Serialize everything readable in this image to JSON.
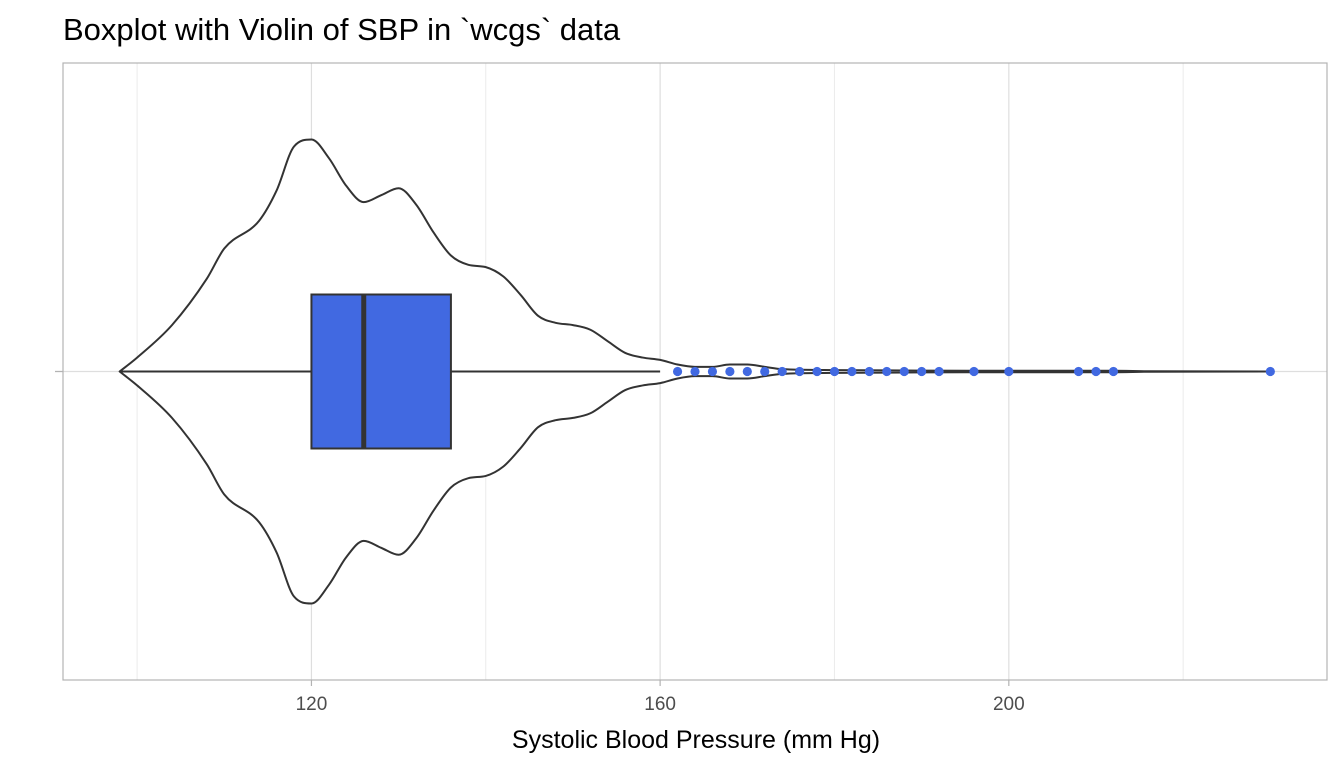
{
  "chart_data": {
    "type": "violin+boxplot",
    "title": "Boxplot with Violin of SBP in `wcgs` data",
    "xlabel": "Systolic Blood Pressure (mm Hg)",
    "ylabel": "",
    "orientation": "horizontal",
    "xlim": [
      91.5,
      236.5
    ],
    "x_ticks": [
      120,
      160,
      200
    ],
    "x_tick_labels": [
      "120",
      "160",
      "200"
    ],
    "minor_gridlines": [
      100,
      140,
      180,
      220
    ],
    "grid": true,
    "legend": "none",
    "box": {
      "whisker_low": 98,
      "q1": 120,
      "median": 126,
      "q3": 136,
      "whisker_high": 160,
      "fill": "#4169e1",
      "outline": "#333333"
    },
    "outliers": [
      162,
      164,
      166,
      168,
      170,
      172,
      174,
      176,
      178,
      180,
      182,
      184,
      186,
      188,
      190,
      192,
      196,
      200,
      208,
      210,
      212,
      230
    ],
    "outlier_color": "#4169e1",
    "violin_density": [
      [
        98,
        0.0
      ],
      [
        100,
        0.06
      ],
      [
        104,
        0.2
      ],
      [
        108,
        0.4
      ],
      [
        110,
        0.53
      ],
      [
        114,
        0.65
      ],
      [
        116,
        0.78
      ],
      [
        118,
        0.97
      ],
      [
        120,
        1.0
      ],
      [
        122,
        0.92
      ],
      [
        124,
        0.8
      ],
      [
        126,
        0.73
      ],
      [
        128,
        0.76
      ],
      [
        130,
        0.79
      ],
      [
        132,
        0.72
      ],
      [
        134,
        0.6
      ],
      [
        136,
        0.5
      ],
      [
        138,
        0.46
      ],
      [
        140,
        0.45
      ],
      [
        142,
        0.41
      ],
      [
        144,
        0.33
      ],
      [
        146,
        0.24
      ],
      [
        148,
        0.21
      ],
      [
        150,
        0.2
      ],
      [
        152,
        0.18
      ],
      [
        154,
        0.13
      ],
      [
        156,
        0.08
      ],
      [
        158,
        0.06
      ],
      [
        160,
        0.05
      ],
      [
        162,
        0.03
      ],
      [
        164,
        0.02
      ],
      [
        166,
        0.02
      ],
      [
        168,
        0.03
      ],
      [
        170,
        0.03
      ],
      [
        172,
        0.02
      ],
      [
        174,
        0.01
      ],
      [
        180,
        0.006
      ],
      [
        190,
        0.004
      ],
      [
        200,
        0.003
      ],
      [
        212,
        0.003
      ],
      [
        216,
        0.001
      ],
      [
        230,
        0.0
      ]
    ],
    "violin_outline": "#333333",
    "violin_fill": "#ffffff"
  }
}
